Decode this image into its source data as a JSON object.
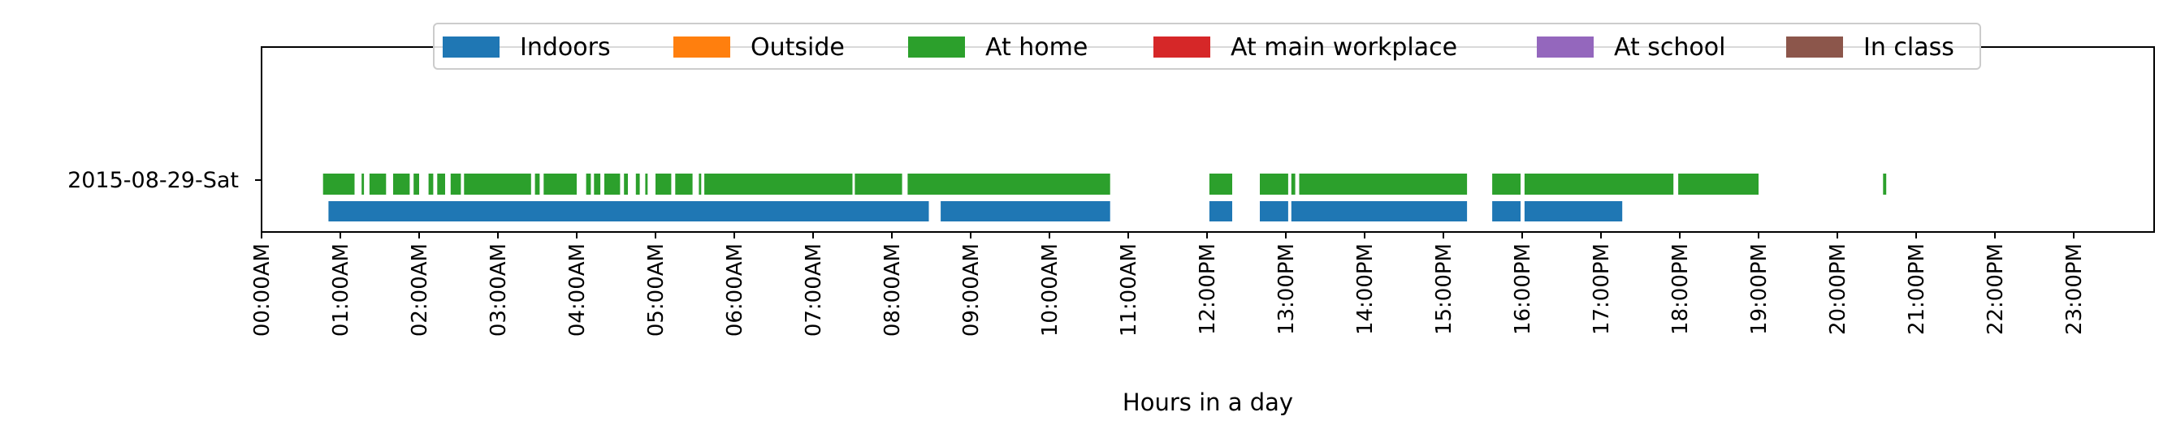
{
  "chart_data": {
    "type": "timeline",
    "xlabel": "Hours in a day",
    "xlim": [
      0,
      24
    ],
    "x_ticks": [
      "00:00AM",
      "01:00AM",
      "02:00AM",
      "03:00AM",
      "04:00AM",
      "05:00AM",
      "06:00AM",
      "07:00AM",
      "08:00AM",
      "09:00AM",
      "10:00AM",
      "11:00AM",
      "12:00PM",
      "13:00PM",
      "14:00PM",
      "15:00PM",
      "16:00PM",
      "17:00PM",
      "18:00PM",
      "19:00PM",
      "20:00PM",
      "21:00PM",
      "22:00PM",
      "23:00PM"
    ],
    "y_categories": [
      "2015-08-29-Sat"
    ],
    "legend": [
      {
        "name": "Indoors",
        "color": "#1f77b4"
      },
      {
        "name": "Outside",
        "color": "#ff7f0e"
      },
      {
        "name": "At home",
        "color": "#2ca02c"
      },
      {
        "name": "At main workplace",
        "color": "#d62728"
      },
      {
        "name": "At school",
        "color": "#9467bd"
      },
      {
        "name": "In class",
        "color": "#8c564b"
      }
    ],
    "legend_position": "top-center",
    "series": [
      {
        "name": "At home",
        "color": "#2ca02c",
        "intervals": [
          [
            0.78,
            1.18
          ],
          [
            1.27,
            1.3
          ],
          [
            1.37,
            1.58
          ],
          [
            1.67,
            1.88
          ],
          [
            1.93,
            2.0
          ],
          [
            2.12,
            2.18
          ],
          [
            2.23,
            2.33
          ],
          [
            2.4,
            2.53
          ],
          [
            2.57,
            3.42
          ],
          [
            3.47,
            3.53
          ],
          [
            3.58,
            4.0
          ],
          [
            4.12,
            4.18
          ],
          [
            4.22,
            4.3
          ],
          [
            4.35,
            4.55
          ],
          [
            4.6,
            4.65
          ],
          [
            4.75,
            4.8
          ],
          [
            4.87,
            4.9
          ],
          [
            5.0,
            5.2
          ],
          [
            5.25,
            5.47
          ],
          [
            5.55,
            5.58
          ],
          [
            5.62,
            7.5
          ],
          [
            7.53,
            8.13
          ],
          [
            8.2,
            10.77
          ],
          [
            12.03,
            12.32
          ],
          [
            12.67,
            13.03
          ],
          [
            13.07,
            13.12
          ],
          [
            13.17,
            15.3
          ],
          [
            15.62,
            15.98
          ],
          [
            16.03,
            17.92
          ],
          [
            17.98,
            19.0
          ],
          [
            20.58,
            20.62
          ]
        ]
      },
      {
        "name": "Indoors",
        "color": "#1f77b4",
        "intervals": [
          [
            0.85,
            8.47
          ],
          [
            8.62,
            10.77
          ],
          [
            12.03,
            12.32
          ],
          [
            12.67,
            13.03
          ],
          [
            13.07,
            15.3
          ],
          [
            15.62,
            15.98
          ],
          [
            16.03,
            17.27
          ]
        ]
      }
    ]
  }
}
